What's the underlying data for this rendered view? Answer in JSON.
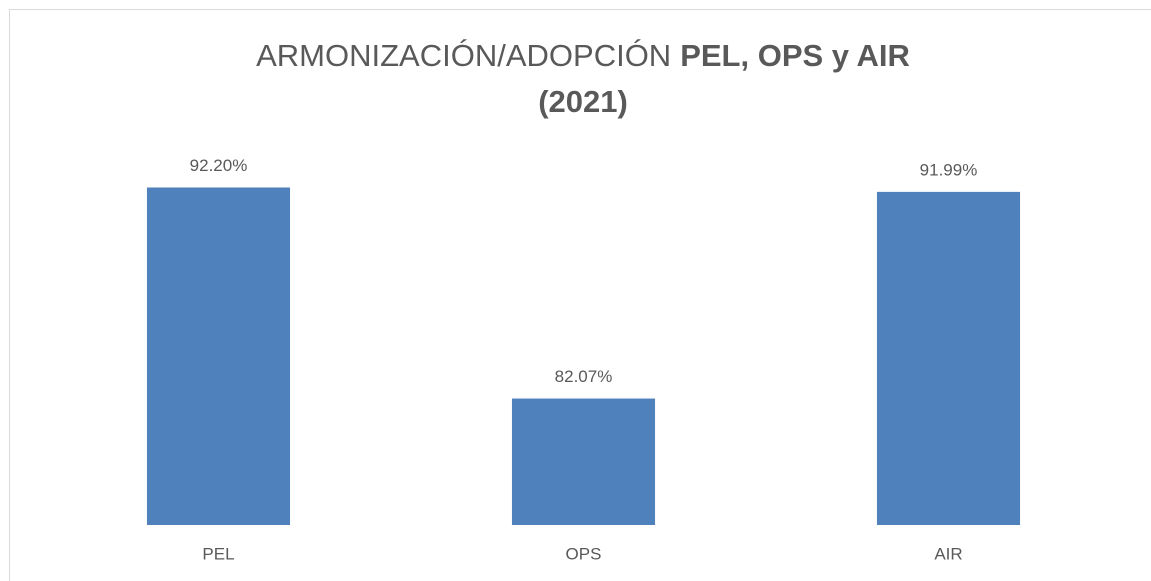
{
  "chart_data": {
    "type": "bar",
    "title": [
      "ARMONIZACIÓN/ADOPCIÓN",
      "PEL, OPS y AIR",
      "(2021)"
    ],
    "categories": [
      "PEL",
      "OPS",
      "AIR"
    ],
    "values": [
      92.2,
      82.07,
      91.99
    ],
    "value_labels": [
      "92.20%",
      "82.07%",
      "91.99%"
    ],
    "color": "#4f81bd",
    "ylim": [
      76,
      94
    ],
    "grid": false
  }
}
